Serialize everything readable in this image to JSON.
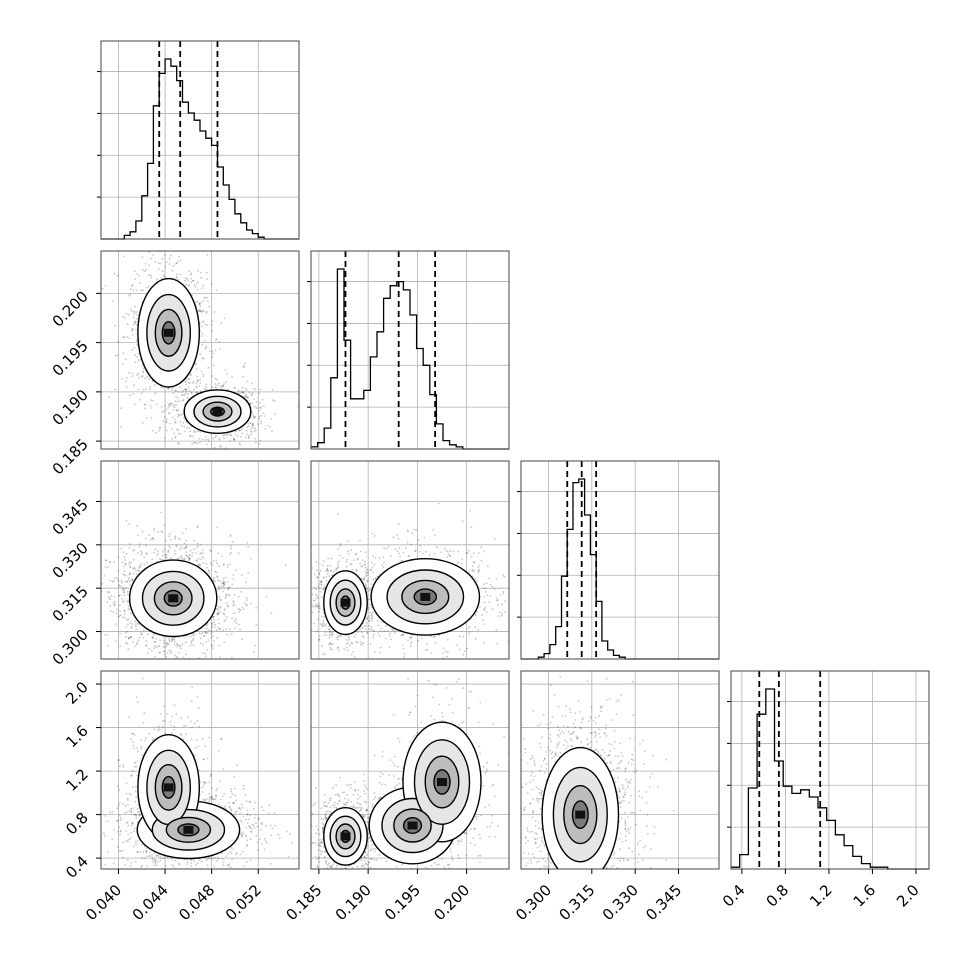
{
  "chart_data": {
    "type": "corner",
    "title": "",
    "parameters": [
      {
        "label": "",
        "range": [
          0.0385,
          0.0555
        ],
        "ticks": [
          "0.040",
          "0.044",
          "0.048",
          "0.052"
        ],
        "quantiles": [
          0.0435,
          0.0453,
          0.0485
        ],
        "histogram": {
          "bin_edges": [
            0.0385,
            0.039,
            0.0395,
            0.04,
            0.0405,
            0.041,
            0.0415,
            0.042,
            0.0425,
            0.043,
            0.0435,
            0.044,
            0.0445,
            0.045,
            0.0455,
            0.046,
            0.0465,
            0.047,
            0.0475,
            0.048,
            0.0485,
            0.049,
            0.0495,
            0.05,
            0.0505,
            0.051,
            0.0515,
            0.052,
            0.0525,
            0.053,
            0.0535,
            0.054,
            0.0545,
            0.055,
            0.0555
          ],
          "counts": [
            0,
            0,
            0,
            0,
            2,
            4,
            10,
            24,
            42,
            74,
            92,
            100,
            96,
            88,
            76,
            70,
            66,
            60,
            56,
            52,
            40,
            30,
            22,
            14,
            9,
            5,
            3,
            1,
            0,
            0,
            0,
            0,
            0,
            0
          ]
        }
      },
      {
        "label": "",
        "range": [
          0.1842,
          0.2043
        ],
        "ticks": [
          "0.185",
          "0.190",
          "0.195",
          "0.200"
        ],
        "quantiles": [
          0.1877,
          0.1931,
          0.1968
        ],
        "histogram": {
          "bin_edges": [
            0.1842,
            0.18487,
            0.18554,
            0.18621,
            0.18688,
            0.18755,
            0.18822,
            0.18889,
            0.18956,
            0.19023,
            0.1909,
            0.19157,
            0.19224,
            0.19291,
            0.19358,
            0.19425,
            0.19492,
            0.19559,
            0.19626,
            0.19693,
            0.1976,
            0.19827,
            0.19894,
            0.19961,
            0.20028,
            0.20095,
            0.20162,
            0.20229,
            0.20296,
            0.20363,
            0.2043
          ],
          "counts": [
            1,
            3,
            10,
            34,
            86,
            52,
            24,
            24,
            28,
            44,
            56,
            72,
            78,
            80,
            76,
            64,
            48,
            40,
            26,
            12,
            4,
            2,
            1,
            0,
            0,
            0,
            0,
            0,
            0,
            0
          ]
        }
      },
      {
        "label": "",
        "range": [
          0.2905,
          0.359
        ],
        "ticks": [
          "0.300",
          "0.315",
          "0.330",
          "0.345"
        ],
        "quantiles": [
          0.3065,
          0.3115,
          0.3165
        ],
        "histogram": {
          "bin_edges": [
            0.2905,
            0.2925,
            0.2945,
            0.2965,
            0.2985,
            0.3005,
            0.3025,
            0.3045,
            0.3065,
            0.3085,
            0.3105,
            0.3125,
            0.3145,
            0.3165,
            0.3185,
            0.3205,
            0.3225,
            0.3245,
            0.3265,
            0.3285,
            0.3305,
            0.3325,
            0.3345,
            0.3365,
            0.3385,
            0.3405,
            0.3425,
            0.3445,
            0.3465,
            0.3485,
            0.3505,
            0.3525,
            0.3545,
            0.3565,
            0.359
          ],
          "counts": [
            0,
            0,
            0,
            1,
            3,
            8,
            18,
            46,
            72,
            98,
            100,
            80,
            58,
            32,
            10,
            5,
            2,
            1,
            0,
            0,
            0,
            0,
            0,
            0,
            0,
            0,
            0,
            0,
            0,
            0,
            0,
            0,
            0,
            0
          ]
        }
      },
      {
        "label": "",
        "range": [
          0.3,
          2.12
        ],
        "ticks": [
          "0.4",
          "0.8",
          "1.2",
          "1.6",
          "2.0"
        ],
        "quantiles": [
          0.56,
          0.74,
          1.12
        ],
        "histogram": {
          "bin_edges": [
            0.3,
            0.38,
            0.46,
            0.54,
            0.62,
            0.7,
            0.78,
            0.86,
            0.94,
            1.02,
            1.1,
            1.18,
            1.26,
            1.34,
            1.42,
            1.5,
            1.58,
            1.66,
            1.74,
            1.82,
            1.9,
            1.98,
            2.06,
            2.12
          ],
          "counts": [
            1,
            8,
            45,
            86,
            100,
            60,
            46,
            42,
            44,
            40,
            34,
            27,
            19,
            13,
            7,
            3,
            1,
            1,
            0,
            0,
            0,
            0,
            0
          ]
        }
      }
    ],
    "pairs": [
      {
        "row": 1,
        "col": 0,
        "modes": [
          {
            "x": 0.0443,
            "y": 0.196,
            "sx": 0.0012,
            "sy": 0.0025,
            "w": 0.55
          },
          {
            "x": 0.0485,
            "y": 0.188,
            "sx": 0.0013,
            "sy": 0.001,
            "w": 0.45
          }
        ]
      },
      {
        "row": 2,
        "col": 0,
        "modes": [
          {
            "x": 0.0447,
            "y": 0.3115,
            "sx": 0.0017,
            "sy": 0.006,
            "w": 1.0
          }
        ]
      },
      {
        "row": 2,
        "col": 1,
        "modes": [
          {
            "x": 0.1877,
            "y": 0.31,
            "sx": 0.001,
            "sy": 0.005,
            "w": 0.45
          },
          {
            "x": 0.1958,
            "y": 0.312,
            "sx": 0.0025,
            "sy": 0.006,
            "w": 0.55
          }
        ]
      },
      {
        "row": 3,
        "col": 0,
        "modes": [
          {
            "x": 0.046,
            "y": 0.66,
            "sx": 0.002,
            "sy": 0.12,
            "w": 0.65
          },
          {
            "x": 0.0443,
            "y": 1.05,
            "sx": 0.0012,
            "sy": 0.22,
            "w": 0.35
          }
        ]
      },
      {
        "row": 3,
        "col": 1,
        "modes": [
          {
            "x": 0.1877,
            "y": 0.6,
            "sx": 0.001,
            "sy": 0.12,
            "w": 0.45
          },
          {
            "x": 0.1945,
            "y": 0.7,
            "sx": 0.002,
            "sy": 0.16,
            "w": 0.3
          },
          {
            "x": 0.1975,
            "y": 1.1,
            "sx": 0.0018,
            "sy": 0.25,
            "w": 0.25
          }
        ]
      },
      {
        "row": 3,
        "col": 2,
        "modes": [
          {
            "x": 0.311,
            "y": 0.8,
            "sx": 0.006,
            "sy": 0.28,
            "w": 1.0
          }
        ]
      }
    ]
  }
}
